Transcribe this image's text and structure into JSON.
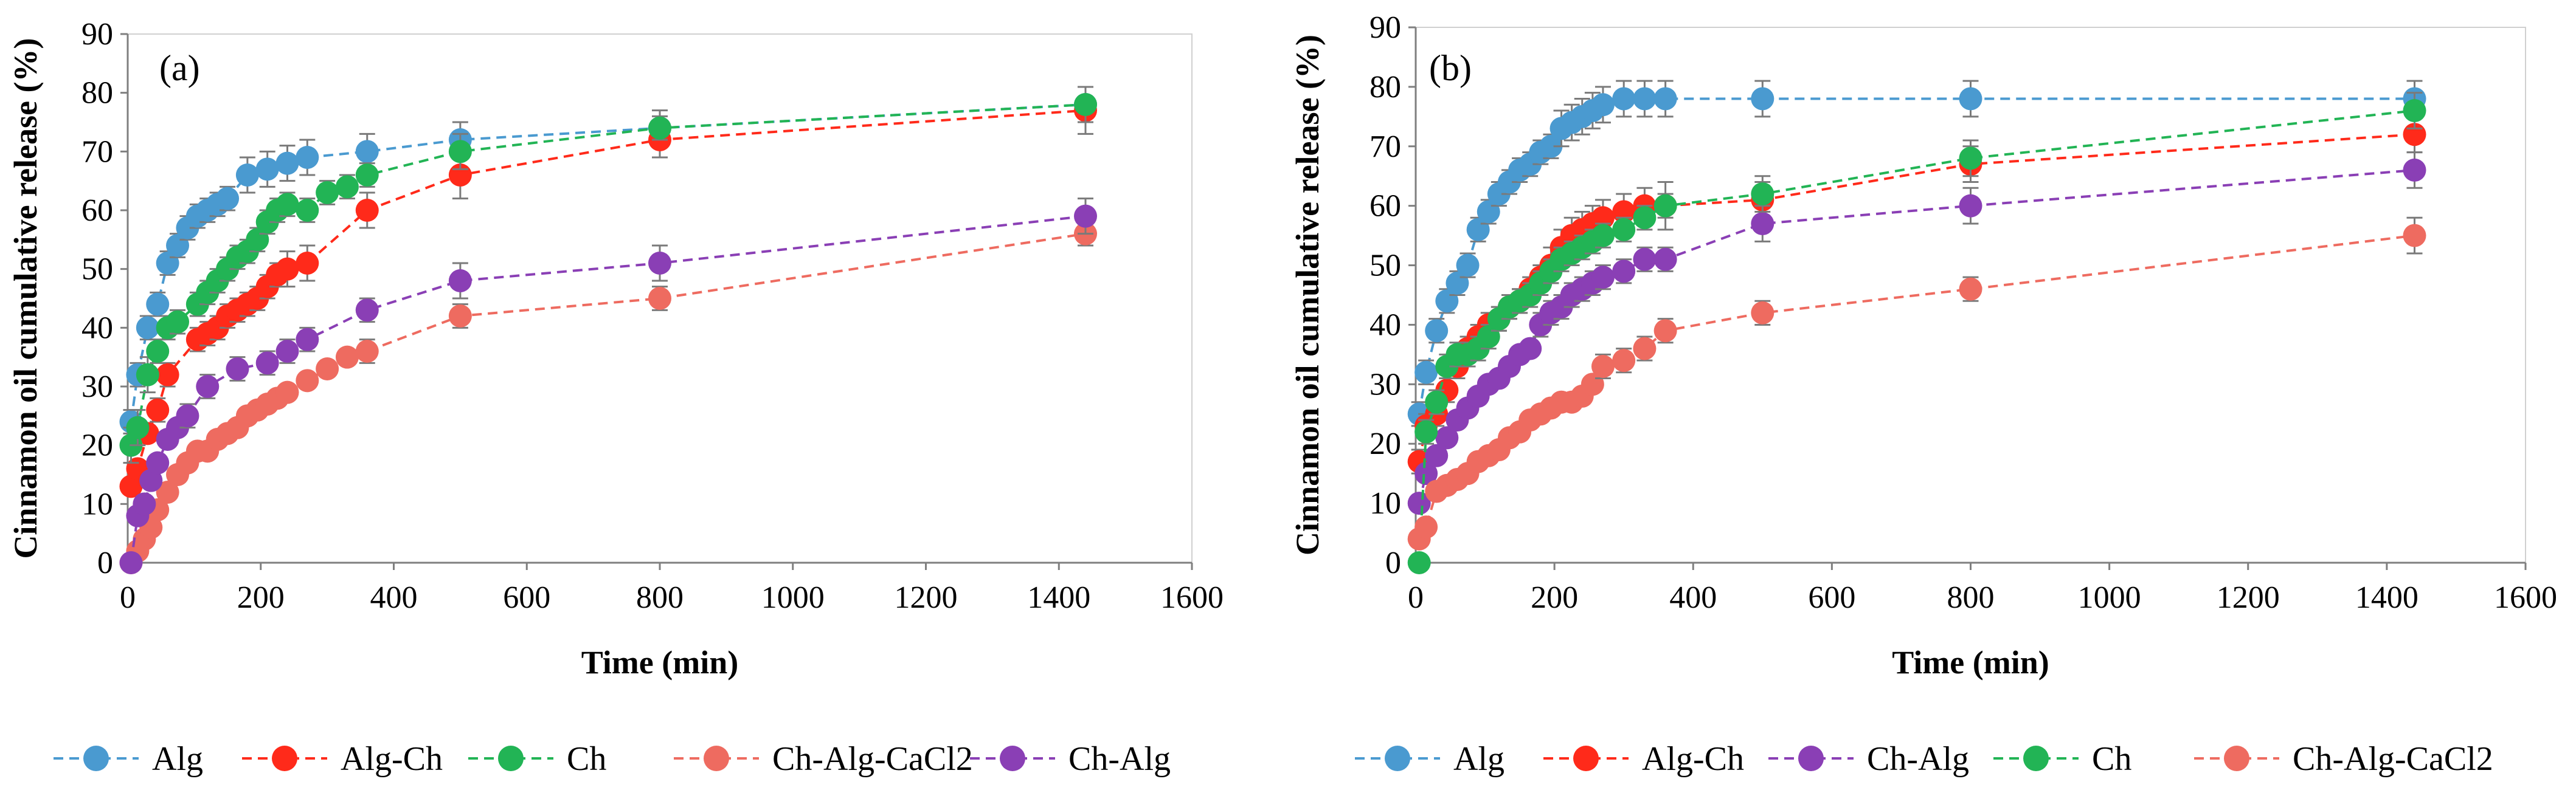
{
  "chart_data": [
    {
      "type": "scatter",
      "panel_label": "(a)",
      "xlabel": "Time (min)",
      "ylabel": "Cinnamon oil cumulative release (%)",
      "xlim": [
        0,
        1600
      ],
      "ylim": [
        0,
        90
      ],
      "xticks": [
        "0",
        "200",
        "400",
        "600",
        "800",
        "1000",
        "1200",
        "1400",
        "1600"
      ],
      "yticks": [
        "0",
        "10",
        "20",
        "30",
        "40",
        "50",
        "60",
        "70",
        "80",
        "90"
      ],
      "grid": false,
      "legend_position": "bottom",
      "series": [
        {
          "name": "Alg",
          "color": "#4A9AD0",
          "x": [
            5,
            15,
            30,
            45,
            60,
            75,
            90,
            105,
            120,
            135,
            150,
            180,
            210,
            240,
            270,
            360,
            500,
            800,
            1440
          ],
          "y": [
            24,
            32,
            40,
            44,
            51,
            54,
            57,
            59,
            60,
            61,
            62,
            66,
            67,
            68,
            69,
            70,
            72,
            74,
            78
          ],
          "err": [
            2,
            2,
            2,
            2,
            2,
            2,
            2,
            2,
            2,
            2,
            2,
            3,
            3,
            3,
            3,
            3,
            3,
            3,
            3
          ]
        },
        {
          "name": "Alg-Ch",
          "color": "#FF2A1A",
          "x": [
            5,
            15,
            30,
            45,
            60,
            105,
            120,
            135,
            150,
            165,
            180,
            195,
            210,
            225,
            240,
            270,
            360,
            500,
            800,
            1440
          ],
          "y": [
            13,
            16,
            22,
            26,
            32,
            38,
            39,
            40,
            42,
            43,
            44,
            45,
            47,
            49,
            50,
            51,
            60,
            66,
            72,
            77
          ],
          "err": [
            1,
            1,
            1,
            2,
            2,
            2,
            2,
            2,
            2,
            2,
            2,
            2,
            2,
            2,
            3,
            3,
            3,
            4,
            3,
            4
          ]
        },
        {
          "name": "Ch",
          "color": "#22B455",
          "x": [
            5,
            15,
            30,
            45,
            60,
            75,
            105,
            120,
            135,
            150,
            165,
            180,
            195,
            210,
            225,
            240,
            270,
            300,
            330,
            360,
            500,
            800,
            1440
          ],
          "y": [
            20,
            23,
            32,
            36,
            40,
            41,
            44,
            46,
            48,
            50,
            52,
            53,
            55,
            58,
            60,
            61,
            60,
            63,
            64,
            66,
            70,
            74,
            78
          ],
          "err": [
            3,
            3,
            3,
            2,
            2,
            2,
            2,
            2,
            2,
            2,
            2,
            2,
            2,
            2,
            2,
            2,
            2,
            2,
            2,
            2,
            3,
            2,
            3
          ]
        },
        {
          "name": "Ch-Alg-CaCl2",
          "color": "#EE6B60",
          "x": [
            5,
            15,
            25,
            35,
            45,
            60,
            75,
            90,
            105,
            120,
            135,
            150,
            165,
            180,
            195,
            210,
            225,
            240,
            270,
            300,
            330,
            360,
            500,
            800,
            1440
          ],
          "y": [
            0,
            2,
            4,
            6,
            9,
            12,
            15,
            17,
            19,
            19,
            21,
            22,
            23,
            25,
            26,
            27,
            28,
            29,
            31,
            33,
            35,
            36,
            42,
            45,
            56
          ],
          "err": [
            1,
            1,
            1,
            1,
            1,
            1,
            1,
            1,
            1,
            1,
            1,
            1,
            1,
            1,
            1,
            1,
            1,
            1,
            1,
            1,
            1,
            2,
            2,
            2,
            2
          ]
        },
        {
          "name": "Ch-Alg",
          "color": "#8A3FB5",
          "x": [
            5,
            15,
            25,
            35,
            45,
            60,
            75,
            90,
            120,
            165,
            210,
            240,
            270,
            360,
            500,
            800,
            1440
          ],
          "y": [
            0,
            8,
            10,
            14,
            17,
            21,
            23,
            25,
            30,
            33,
            34,
            36,
            38,
            43,
            48,
            51,
            59
          ],
          "err": [
            1,
            1,
            1,
            1,
            1,
            1,
            1,
            2,
            2,
            2,
            2,
            2,
            2,
            2,
            3,
            3,
            3
          ]
        }
      ]
    },
    {
      "type": "scatter",
      "panel_label": "(b)",
      "xlabel": "Time (min)",
      "ylabel": "Cinnamon oil cumulative release (%)",
      "xlim": [
        0,
        1600
      ],
      "ylim": [
        0,
        90
      ],
      "xticks": [
        "0",
        "200",
        "400",
        "600",
        "800",
        "1000",
        "1200",
        "1400",
        "1600"
      ],
      "yticks": [
        "0",
        "10",
        "20",
        "30",
        "40",
        "50",
        "60",
        "70",
        "80",
        "90"
      ],
      "grid": false,
      "legend_position": "bottom",
      "series": [
        {
          "name": "Alg",
          "color": "#4A9AD0",
          "x": [
            5,
            15,
            30,
            45,
            60,
            75,
            90,
            105,
            120,
            135,
            150,
            165,
            180,
            195,
            210,
            225,
            240,
            255,
            270,
            300,
            330,
            360,
            500,
            800,
            1440
          ],
          "y": [
            25,
            32,
            39,
            44,
            47,
            50,
            56,
            59,
            62,
            64,
            66,
            67,
            69,
            70,
            73,
            74,
            75,
            76,
            77,
            78,
            78,
            78,
            78,
            78,
            78
          ],
          "err": [
            2,
            2,
            2,
            2,
            2,
            2,
            2,
            2,
            2,
            2,
            2,
            2,
            2,
            2,
            3,
            3,
            3,
            3,
            3,
            3,
            3,
            3,
            3,
            3,
            3
          ]
        },
        {
          "name": "Alg-Ch",
          "color": "#FF2A1A",
          "x": [
            5,
            15,
            30,
            45,
            60,
            75,
            90,
            105,
            120,
            135,
            150,
            165,
            180,
            195,
            210,
            225,
            240,
            255,
            270,
            300,
            330,
            360,
            500,
            800,
            1440
          ],
          "y": [
            17,
            23,
            25,
            29,
            33,
            36,
            38,
            40,
            41,
            43,
            44,
            46,
            48,
            50,
            53,
            55,
            56,
            57,
            58,
            59,
            60,
            60,
            61,
            67,
            72
          ],
          "err": [
            2,
            2,
            2,
            2,
            2,
            2,
            2,
            2,
            2,
            2,
            2,
            2,
            2,
            3,
            3,
            3,
            3,
            3,
            3,
            3,
            3,
            4,
            3,
            3,
            3
          ]
        },
        {
          "name": "Ch-Alg",
          "color": "#8A3FB5",
          "x": [
            5,
            15,
            30,
            45,
            60,
            75,
            90,
            105,
            120,
            135,
            150,
            165,
            180,
            195,
            210,
            225,
            240,
            255,
            270,
            300,
            330,
            360,
            500,
            800,
            1440
          ],
          "y": [
            10,
            15,
            18,
            21,
            24,
            26,
            28,
            30,
            31,
            33,
            35,
            36,
            40,
            42,
            43,
            45,
            46,
            47,
            48,
            49,
            51,
            51,
            57,
            60,
            66
          ],
          "err": [
            1,
            1,
            1,
            1,
            1,
            1,
            1,
            1,
            1,
            1,
            1,
            1,
            2,
            2,
            2,
            2,
            2,
            2,
            2,
            2,
            2,
            2,
            3,
            3,
            3
          ]
        },
        {
          "name": "Ch",
          "color": "#22B455",
          "x": [
            5,
            15,
            30,
            45,
            60,
            75,
            90,
            105,
            120,
            135,
            150,
            165,
            180,
            195,
            210,
            225,
            240,
            255,
            270,
            300,
            330,
            360,
            500,
            800,
            1440
          ],
          "y": [
            0,
            22,
            27,
            33,
            35,
            35,
            36,
            38,
            41,
            43,
            44,
            45,
            47,
            49,
            51,
            52,
            53,
            54,
            55,
            56,
            58,
            60,
            62,
            68,
            76
          ],
          "err": [
            1,
            2,
            2,
            2,
            2,
            2,
            2,
            2,
            2,
            2,
            2,
            2,
            2,
            2,
            2,
            2,
            2,
            2,
            2,
            2,
            2,
            2,
            3,
            3,
            3
          ]
        },
        {
          "name": "Ch-Alg-CaCl2",
          "color": "#EE6B60",
          "x": [
            5,
            15,
            30,
            45,
            60,
            75,
            90,
            105,
            120,
            135,
            150,
            165,
            180,
            195,
            210,
            225,
            240,
            255,
            270,
            300,
            330,
            360,
            500,
            800,
            1440
          ],
          "y": [
            4,
            6,
            12,
            13,
            14,
            15,
            17,
            18,
            19,
            21,
            22,
            24,
            25,
            26,
            27,
            27,
            28,
            30,
            33,
            34,
            36,
            39,
            42,
            46,
            55
          ],
          "err": [
            1,
            1,
            1,
            1,
            1,
            1,
            1,
            1,
            1,
            1,
            1,
            1,
            1,
            1,
            1,
            1,
            1,
            1,
            2,
            2,
            2,
            2,
            2,
            2,
            3
          ]
        }
      ]
    }
  ]
}
